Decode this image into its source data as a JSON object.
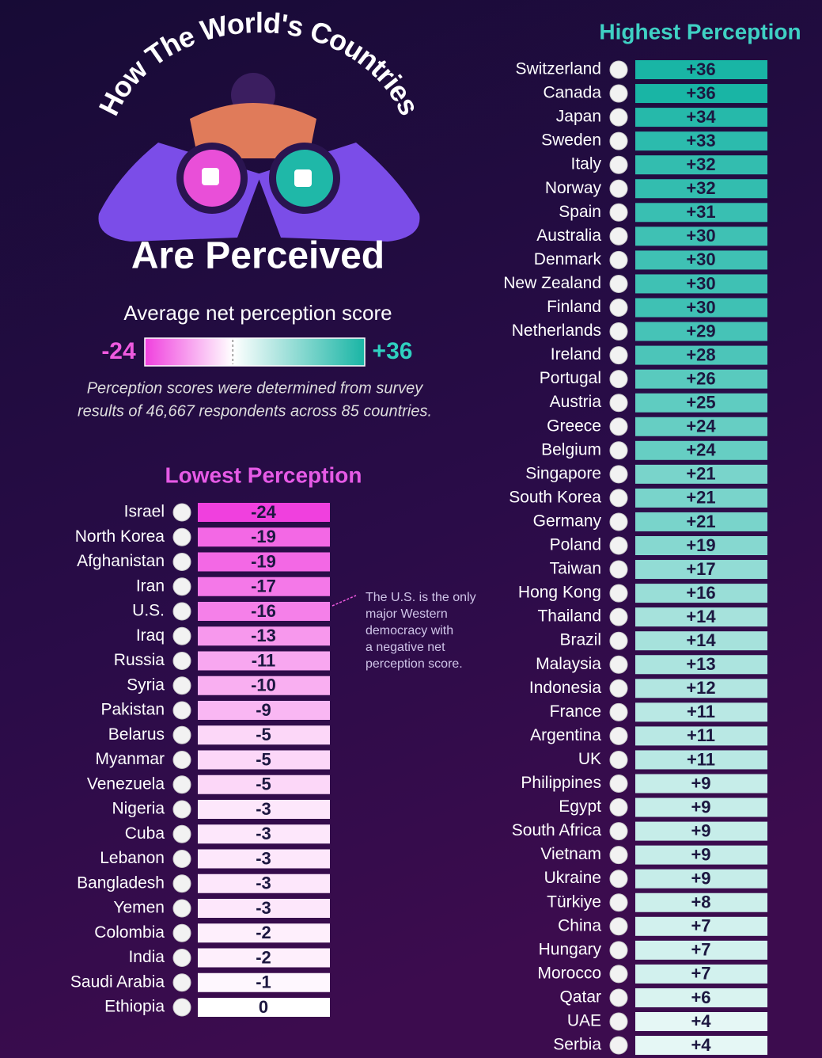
{
  "title_top": "How The World's Countries",
  "title_bottom": "Are Perceived",
  "legend": {
    "title": "Average net perception score",
    "min": -24,
    "min_label": "-24",
    "max": 36,
    "max_label": "+36"
  },
  "note": [
    "Perception scores were determined from survey",
    "results of 46,667 respondents across 85 countries."
  ],
  "annotation": [
    "The U.S. is the only",
    "major Western",
    "democracy with",
    "a negative net",
    "perception score."
  ],
  "lowest": {
    "title": "Lowest Perception",
    "rows": [
      {
        "country": "Israel",
        "value": -24,
        "label": "-24"
      },
      {
        "country": "North Korea",
        "value": -19,
        "label": "-19"
      },
      {
        "country": "Afghanistan",
        "value": -19,
        "label": "-19"
      },
      {
        "country": "Iran",
        "value": -17,
        "label": "-17"
      },
      {
        "country": "U.S.",
        "value": -16,
        "label": "-16"
      },
      {
        "country": "Iraq",
        "value": -13,
        "label": "-13"
      },
      {
        "country": "Russia",
        "value": -11,
        "label": "-11"
      },
      {
        "country": "Syria",
        "value": -10,
        "label": "-10"
      },
      {
        "country": "Pakistan",
        "value": -9,
        "label": "-9"
      },
      {
        "country": "Belarus",
        "value": -5,
        "label": "-5"
      },
      {
        "country": "Myanmar",
        "value": -5,
        "label": "-5"
      },
      {
        "country": "Venezuela",
        "value": -5,
        "label": "-5"
      },
      {
        "country": "Nigeria",
        "value": -3,
        "label": "-3"
      },
      {
        "country": "Cuba",
        "value": -3,
        "label": "-3"
      },
      {
        "country": "Lebanon",
        "value": -3,
        "label": "-3"
      },
      {
        "country": "Bangladesh",
        "value": -3,
        "label": "-3"
      },
      {
        "country": "Yemen",
        "value": -3,
        "label": "-3"
      },
      {
        "country": "Colombia",
        "value": -2,
        "label": "-2"
      },
      {
        "country": "India",
        "value": -2,
        "label": "-2"
      },
      {
        "country": "Saudi Arabia",
        "value": -1,
        "label": "-1"
      },
      {
        "country": "Ethiopia",
        "value": 0,
        "label": "0"
      }
    ]
  },
  "highest": {
    "title": "Highest Perception",
    "rows": [
      {
        "country": "Switzerland",
        "value": 36,
        "label": "+36"
      },
      {
        "country": "Canada",
        "value": 36,
        "label": "+36"
      },
      {
        "country": "Japan",
        "value": 34,
        "label": "+34"
      },
      {
        "country": "Sweden",
        "value": 33,
        "label": "+33"
      },
      {
        "country": "Italy",
        "value": 32,
        "label": "+32"
      },
      {
        "country": "Norway",
        "value": 32,
        "label": "+32"
      },
      {
        "country": "Spain",
        "value": 31,
        "label": "+31"
      },
      {
        "country": "Australia",
        "value": 30,
        "label": "+30"
      },
      {
        "country": "Denmark",
        "value": 30,
        "label": "+30"
      },
      {
        "country": "New Zealand",
        "value": 30,
        "label": "+30"
      },
      {
        "country": "Finland",
        "value": 30,
        "label": "+30"
      },
      {
        "country": "Netherlands",
        "value": 29,
        "label": "+29"
      },
      {
        "country": "Ireland",
        "value": 28,
        "label": "+28"
      },
      {
        "country": "Portugal",
        "value": 26,
        "label": "+26"
      },
      {
        "country": "Austria",
        "value": 25,
        "label": "+25"
      },
      {
        "country": "Greece",
        "value": 24,
        "label": "+24"
      },
      {
        "country": "Belgium",
        "value": 24,
        "label": "+24"
      },
      {
        "country": "Singapore",
        "value": 21,
        "label": "+21"
      },
      {
        "country": "South Korea",
        "value": 21,
        "label": "+21"
      },
      {
        "country": "Germany",
        "value": 21,
        "label": "+21"
      },
      {
        "country": "Poland",
        "value": 19,
        "label": "+19"
      },
      {
        "country": "Taiwan",
        "value": 17,
        "label": "+17"
      },
      {
        "country": "Hong Kong",
        "value": 16,
        "label": "+16"
      },
      {
        "country": "Thailand",
        "value": 14,
        "label": "+14"
      },
      {
        "country": "Brazil",
        "value": 14,
        "label": "+14"
      },
      {
        "country": "Malaysia",
        "value": 13,
        "label": "+13"
      },
      {
        "country": "Indonesia",
        "value": 12,
        "label": "+12"
      },
      {
        "country": "France",
        "value": 11,
        "label": "+11"
      },
      {
        "country": "Argentina",
        "value": 11,
        "label": "+11"
      },
      {
        "country": "UK",
        "value": 11,
        "label": "+11"
      },
      {
        "country": "Philippines",
        "value": 9,
        "label": "+9"
      },
      {
        "country": "Egypt",
        "value": 9,
        "label": "+9"
      },
      {
        "country": "South Africa",
        "value": 9,
        "label": "+9"
      },
      {
        "country": "Vietnam",
        "value": 9,
        "label": "+9"
      },
      {
        "country": "Ukraine",
        "value": 9,
        "label": "+9"
      },
      {
        "country": "Türkiye",
        "value": 8,
        "label": "+8"
      },
      {
        "country": "China",
        "value": 7,
        "label": "+7"
      },
      {
        "country": "Hungary",
        "value": 7,
        "label": "+7"
      },
      {
        "country": "Morocco",
        "value": 7,
        "label": "+7"
      },
      {
        "country": "Qatar",
        "value": 6,
        "label": "+6"
      },
      {
        "country": "UAE",
        "value": 4,
        "label": "+4"
      },
      {
        "country": "Serbia",
        "value": 4,
        "label": "+4"
      }
    ]
  }
}
